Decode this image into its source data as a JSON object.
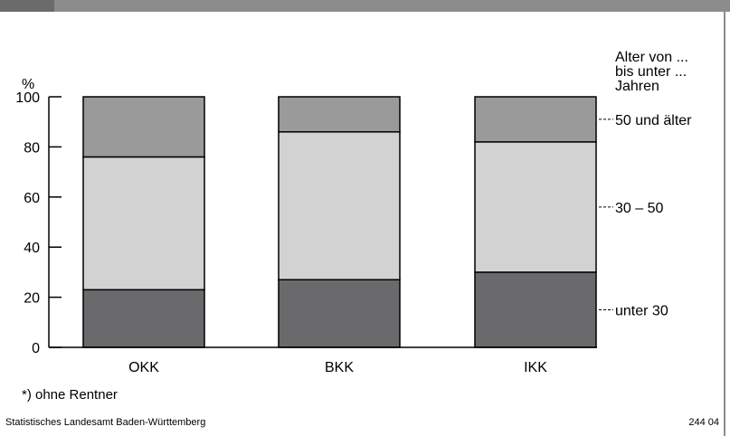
{
  "colors": {
    "unter_30": "#6a6a6d",
    "dreissig_50": "#d2d2d2",
    "50_und_aelter": "#9a9a9a",
    "axis": "#000000",
    "topbar": "#8c8c8c"
  },
  "chart_data": {
    "type": "bar",
    "stacked": true,
    "categories": [
      "OKK",
      "BKK",
      "IKK"
    ],
    "series": [
      {
        "name": "unter 30",
        "values": [
          23,
          27,
          30
        ]
      },
      {
        "name": "30 – 50",
        "values": [
          53,
          59,
          52
        ]
      },
      {
        "name": "50 und älter",
        "values": [
          24,
          14,
          18
        ]
      }
    ],
    "ylabel": "%",
    "ylim": [
      0,
      100
    ],
    "yticks": [
      0,
      20,
      40,
      60,
      80,
      100
    ],
    "legend_title": [
      "Alter von ...",
      "bis unter ...",
      "Jahren"
    ],
    "legend_placement": "right",
    "grid": false
  },
  "footnote": "*) ohne Rentner",
  "source": "Statistisches Landesamt Baden-Württemberg",
  "figure_number": "244 04"
}
